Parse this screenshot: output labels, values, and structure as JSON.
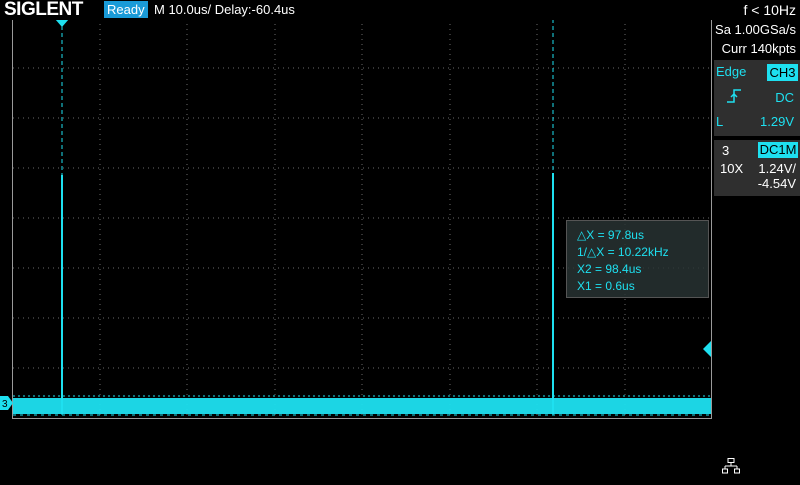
{
  "header": {
    "logo": "SIGLENT",
    "status": "Ready",
    "timebase": "M 10.0us/  Delay:-60.4us",
    "trigger_freq": "f < 10Hz"
  },
  "acquisition": {
    "sample_rate": "Sa 1.00GSa/s",
    "memory_depth": "Curr 140kpts"
  },
  "trigger": {
    "type": "Edge",
    "source": "CH3",
    "coupling": "DC",
    "level_label": "L",
    "level": "1.29V",
    "slope_icon": "rising-edge-icon"
  },
  "channel": {
    "number": "3",
    "coupling": "DC1M",
    "probe": "10X",
    "volts_per_div": "1.24V/",
    "offset": "-4.54V"
  },
  "cursors": {
    "delta_x": "△X = 97.8us",
    "inv_delta_x": "1/△X = 10.22kHz",
    "x2": "X2 = 98.4us",
    "x1": "X1 = 0.6us"
  },
  "markers": {
    "channel_marker": "3"
  },
  "colors": {
    "trace": "#1ee0f0",
    "status_bg": "#1a9bd8",
    "panel_bg": "#2f2f2f"
  }
}
